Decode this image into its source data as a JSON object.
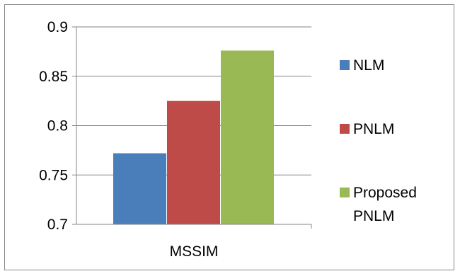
{
  "chart_data": {
    "type": "bar",
    "categories": [
      "MSSIM"
    ],
    "series": [
      {
        "name": "NLM",
        "values": [
          0.772
        ],
        "color": "#4a7ebb"
      },
      {
        "name": "PNLM",
        "values": [
          0.825
        ],
        "color": "#be4b48"
      },
      {
        "name": "Proposed PNLM",
        "values": [
          0.876
        ],
        "color": "#98b954"
      }
    ],
    "ylim": [
      0.7,
      0.9
    ],
    "yticks": [
      0.7,
      0.75,
      0.8,
      0.85,
      0.9
    ],
    "ytick_labels": [
      "0.7",
      "0.75",
      "0.8",
      "0.85",
      "0.9"
    ],
    "legend": {
      "position": "right",
      "entries": [
        [
          "NLM"
        ],
        [
          "PNLM"
        ],
        [
          "Proposed",
          "PNLM"
        ]
      ]
    },
    "grid": true
  }
}
